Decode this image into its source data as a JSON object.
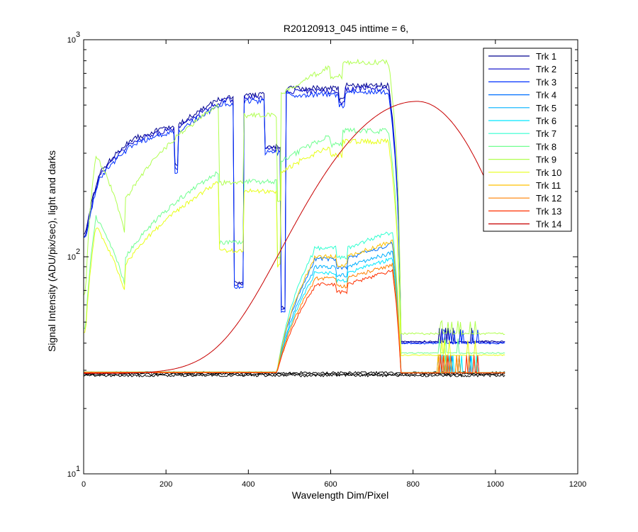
{
  "chart_data": {
    "type": "line",
    "title": "R20120913_045 inttime = 6,",
    "xlabel": "Wavelength Dim/Pixel",
    "ylabel": "Signal Intensity (ADU/pix/sec), light and darks",
    "xlim": [
      0,
      1200
    ],
    "ylim": [
      10,
      1000
    ],
    "yscale": "log",
    "x_ticks": [
      "0",
      "200",
      "400",
      "600",
      "800",
      "1000",
      "1200"
    ],
    "y_ticks": [
      {
        "base": "10",
        "exp": "1"
      },
      {
        "base": "10",
        "exp": "2"
      },
      {
        "base": "10",
        "exp": "3"
      }
    ],
    "grid": false,
    "legend_position": "top-right",
    "series": [
      {
        "name": "Trk 1",
        "color": "#00008f",
        "shape": "blue",
        "level": 615
      },
      {
        "name": "Trk 2",
        "color": "#0000c8",
        "shape": "blue",
        "level": 595
      },
      {
        "name": "Trk 3",
        "color": "#0030ff",
        "shape": "blue",
        "level": 575
      },
      {
        "name": "Trk 4",
        "color": "#0070ff",
        "shape": "cyan",
        "level": 115
      },
      {
        "name": "Trk 5",
        "color": "#00b0ff",
        "shape": "cyan",
        "level": 105
      },
      {
        "name": "Trk 6",
        "color": "#00e8ff",
        "shape": "cyan",
        "level": 98
      },
      {
        "name": "Trk 7",
        "color": "#30ffd0",
        "shape": "cyan",
        "level": 130
      },
      {
        "name": "Trk 8",
        "color": "#70ff90",
        "shape": "green",
        "level": 380
      },
      {
        "name": "Trk 9",
        "color": "#b0ff50",
        "shape": "green",
        "level": 790
      },
      {
        "name": "Trk 10",
        "color": "#e8ff18",
        "shape": "green",
        "level": 340
      },
      {
        "name": "Trk 11",
        "color": "#ffc000",
        "shape": "orange",
        "level": 118
      },
      {
        "name": "Trk 12",
        "color": "#ff8000",
        "shape": "orange",
        "level": 92
      },
      {
        "name": "Trk 13",
        "color": "#ff3000",
        "shape": "orange",
        "level": 86
      },
      {
        "name": "Trk 14",
        "color": "#c80000",
        "shape": "red",
        "peak": 520,
        "peak_x": 810
      }
    ],
    "dark_baseline": 29
  }
}
